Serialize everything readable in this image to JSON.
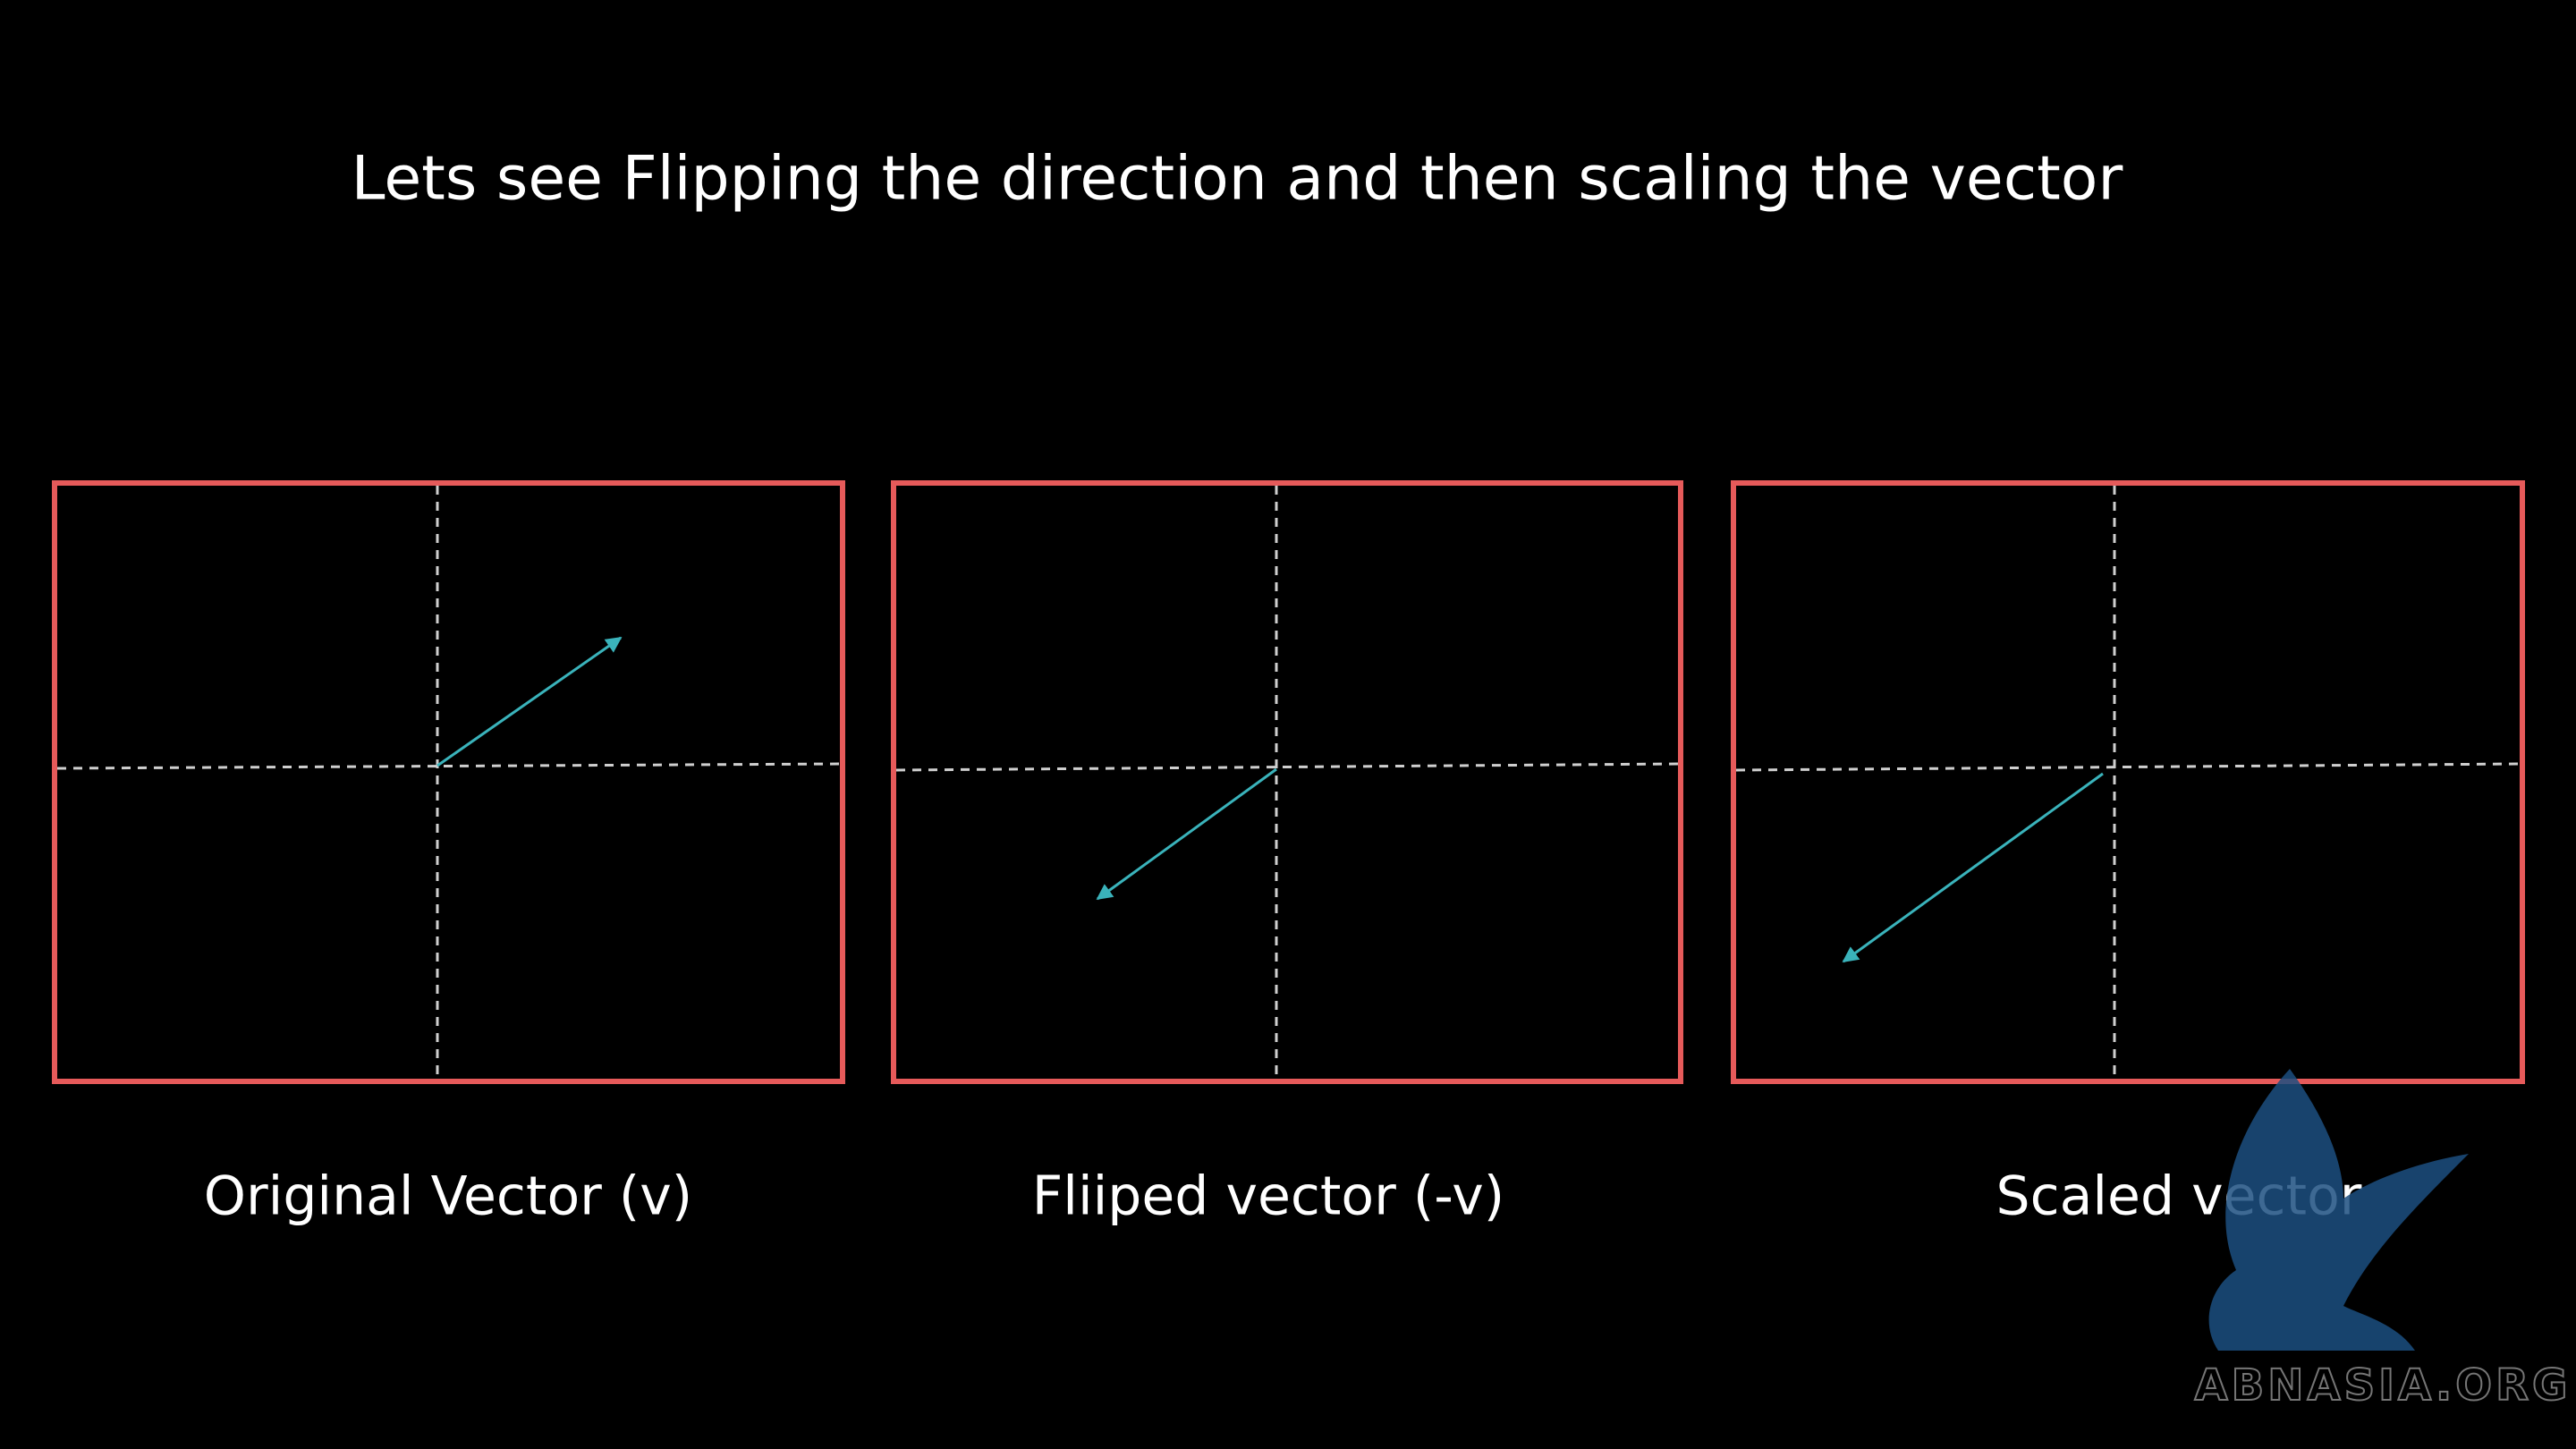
{
  "title": "Lets see Flipping the direction and then scaling the vector",
  "panels": [
    {
      "label": "Original Vector (v)"
    },
    {
      "label": "Fliiped vector (-v)"
    },
    {
      "label": "Scaled vector"
    }
  ],
  "watermark": "ABNASIA.ORG"
}
